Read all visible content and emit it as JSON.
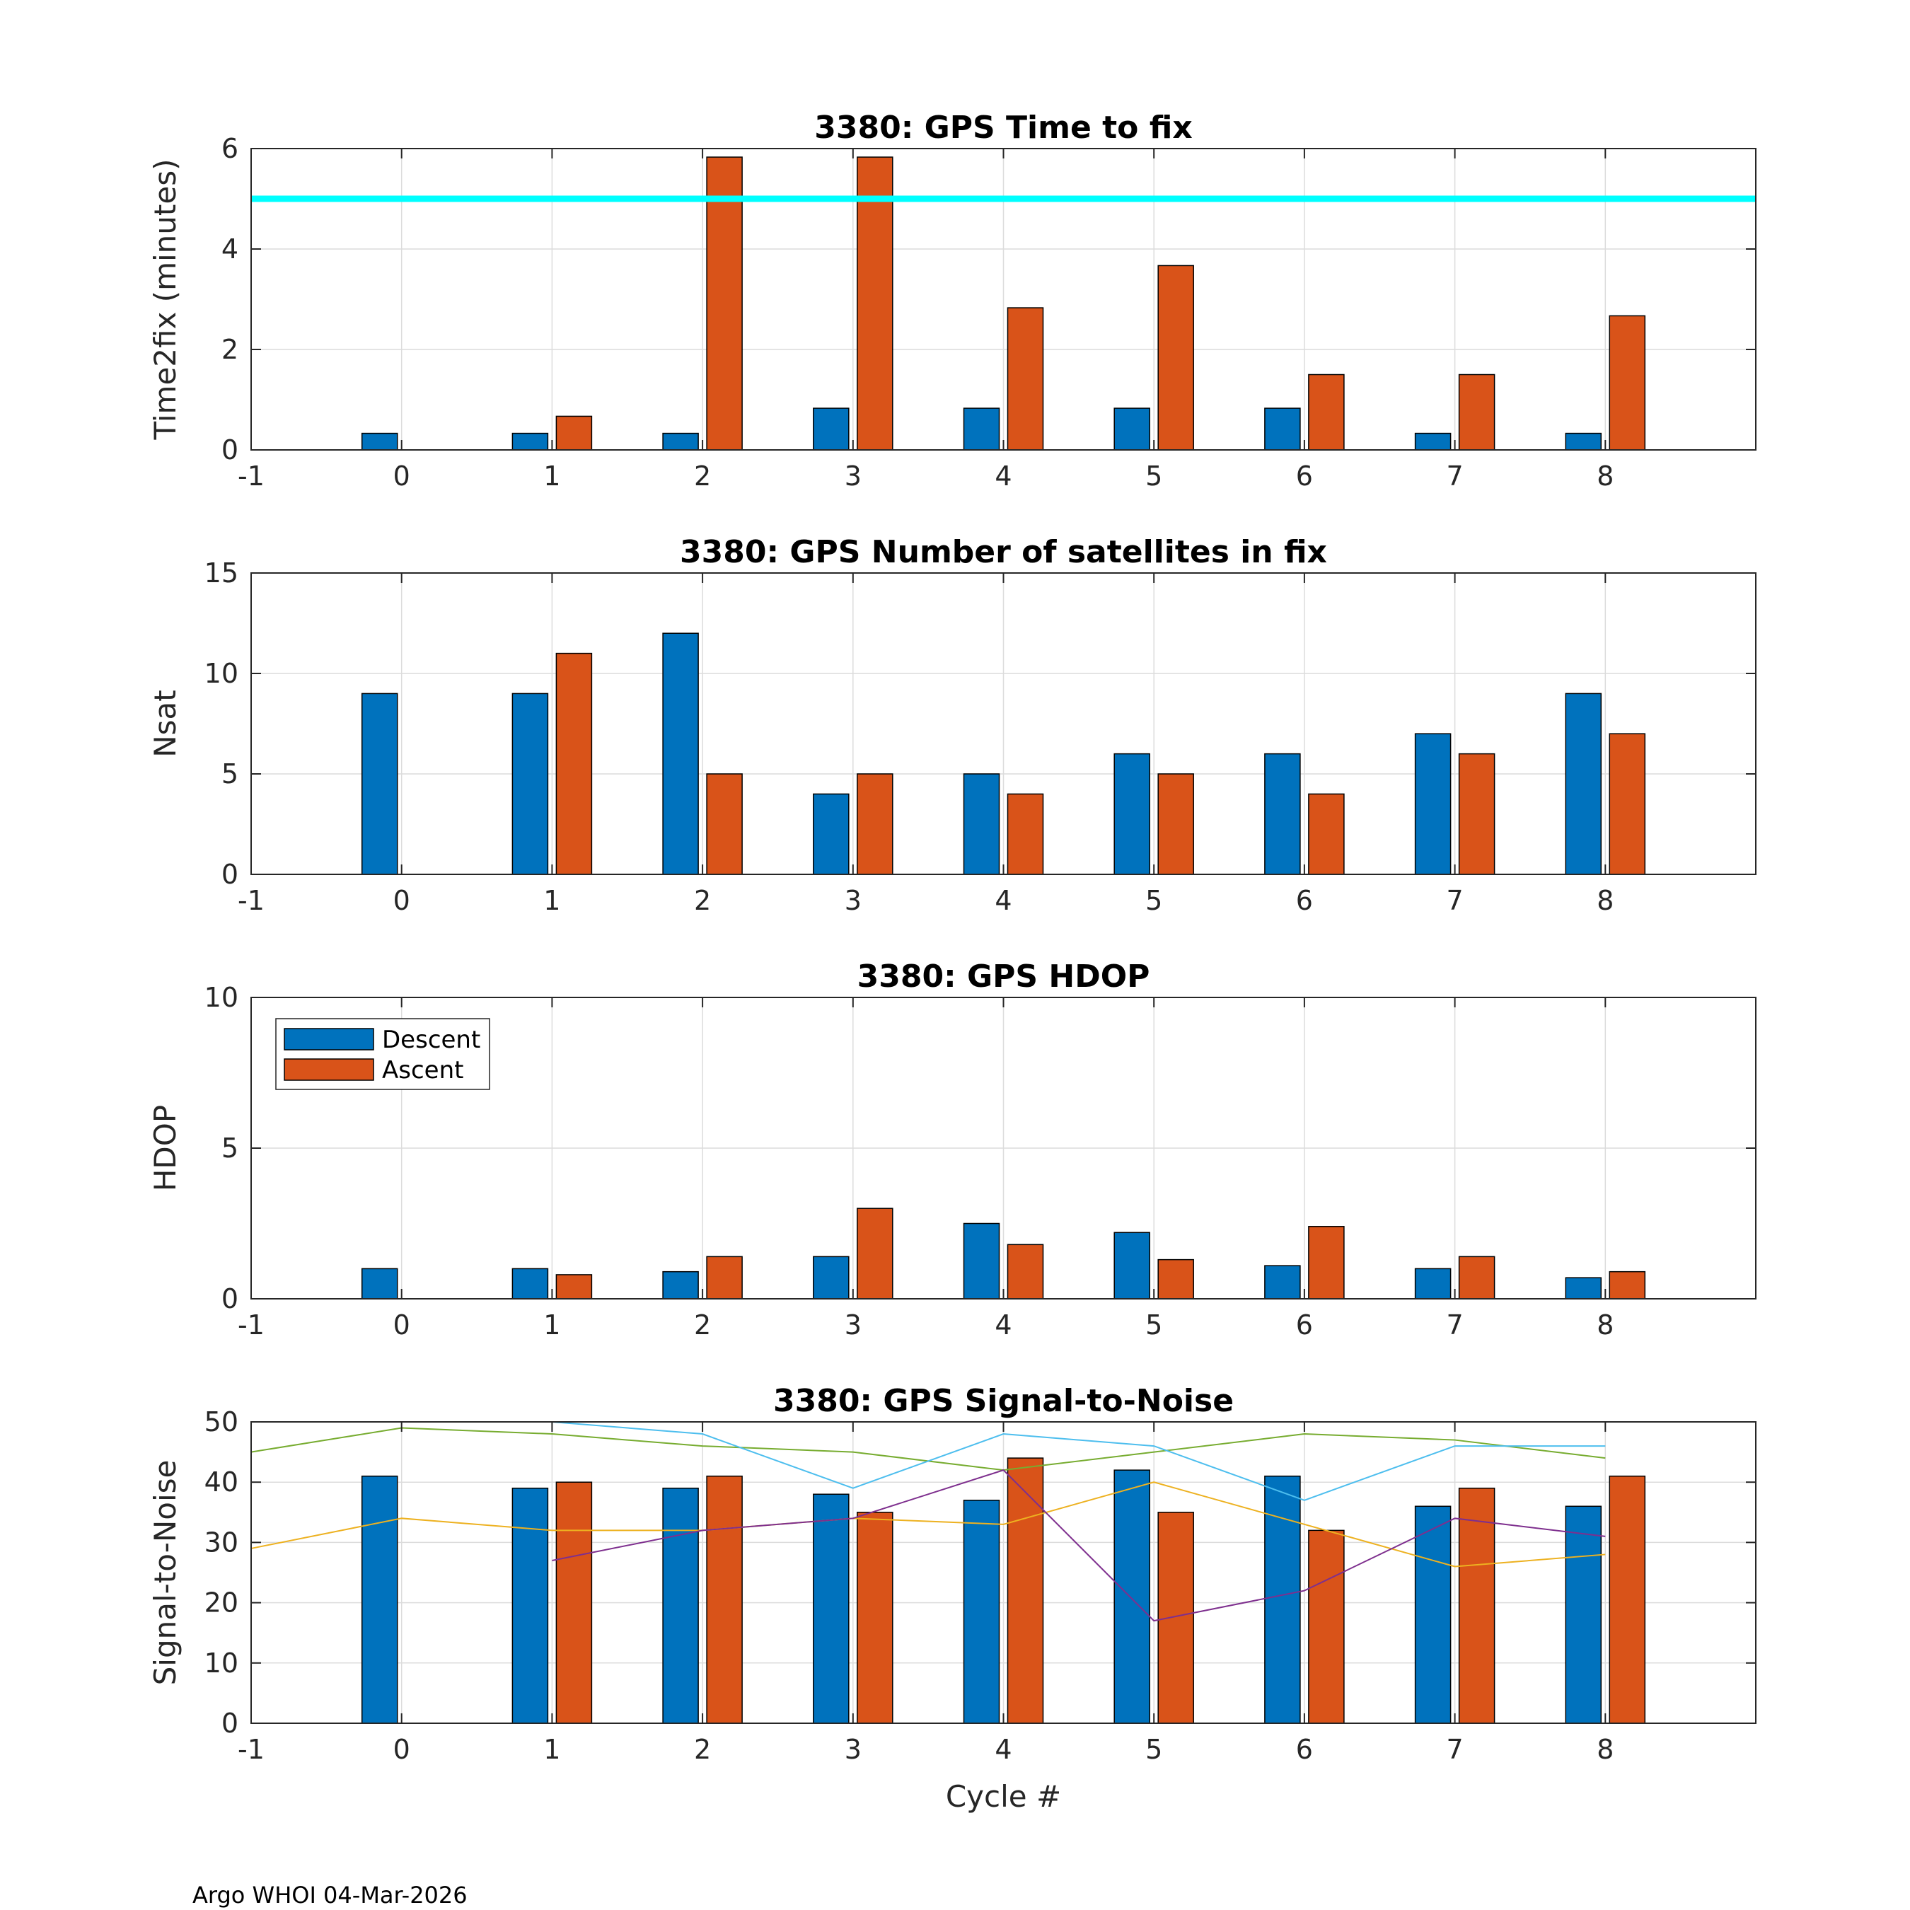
{
  "chart_data": [
    {
      "type": "bar",
      "id": "time2fix",
      "title": "3380: GPS Time to fix",
      "xlabel": "",
      "ylabel": "Time2fix (minutes)",
      "xlim": [
        -1,
        9
      ],
      "ylim": [
        0,
        6
      ],
      "xticks": [
        "-1",
        "0",
        "1",
        "2",
        "3",
        "4",
        "5",
        "6",
        "7",
        "8"
      ],
      "yticks": [
        "0",
        "2",
        "4",
        "6"
      ],
      "ytick_values": [
        0,
        2,
        4,
        6
      ],
      "categories": [
        0,
        1,
        2,
        3,
        4,
        5,
        6,
        7,
        8
      ],
      "series": [
        {
          "name": "Descent",
          "values": [
            0.33,
            0.33,
            0.33,
            0.83,
            0.83,
            0.83,
            0.83,
            0.33,
            0.33
          ]
        },
        {
          "name": "Ascent",
          "values": [
            0,
            0.67,
            5.83,
            5.83,
            2.83,
            3.67,
            1.5,
            1.5,
            2.67
          ]
        }
      ],
      "reference_line": {
        "value": 5,
        "color": "#00ffff"
      }
    },
    {
      "type": "bar",
      "id": "nsat",
      "title": "3380: GPS Number of satellites in fix",
      "xlabel": "",
      "ylabel": "Nsat",
      "xlim": [
        -1,
        9
      ],
      "ylim": [
        0,
        15
      ],
      "xticks": [
        "-1",
        "0",
        "1",
        "2",
        "3",
        "4",
        "5",
        "6",
        "7",
        "8"
      ],
      "yticks": [
        "0",
        "5",
        "10",
        "15"
      ],
      "ytick_values": [
        0,
        5,
        10,
        15
      ],
      "categories": [
        0,
        1,
        2,
        3,
        4,
        5,
        6,
        7,
        8
      ],
      "series": [
        {
          "name": "Descent",
          "values": [
            9,
            9,
            12,
            4,
            5,
            6,
            6,
            7,
            9
          ]
        },
        {
          "name": "Ascent",
          "values": [
            0,
            11,
            5,
            5,
            4,
            5,
            4,
            6,
            7
          ]
        }
      ]
    },
    {
      "type": "bar",
      "id": "hdop",
      "title": "3380: GPS HDOP",
      "xlabel": "",
      "ylabel": "HDOP",
      "xlim": [
        -1,
        9
      ],
      "ylim": [
        0,
        10
      ],
      "xticks": [
        "-1",
        "0",
        "1",
        "2",
        "3",
        "4",
        "5",
        "6",
        "7",
        "8"
      ],
      "yticks": [
        "0",
        "5",
        "10"
      ],
      "ytick_values": [
        0,
        5,
        10
      ],
      "categories": [
        0,
        1,
        2,
        3,
        4,
        5,
        6,
        7,
        8
      ],
      "series": [
        {
          "name": "Descent",
          "values": [
            1.0,
            1.0,
            0.9,
            1.4,
            2.5,
            2.2,
            1.1,
            1.0,
            0.7
          ]
        },
        {
          "name": "Ascent",
          "values": [
            0,
            0.8,
            1.4,
            3.0,
            1.8,
            1.3,
            2.4,
            1.4,
            0.9
          ]
        }
      ],
      "legend": {
        "position": "top-left",
        "entries": [
          "Descent",
          "Ascent"
        ]
      }
    },
    {
      "type": "bar",
      "id": "snr",
      "title": "3380: GPS Signal-to-Noise",
      "xlabel": "Cycle #",
      "ylabel": "Signal-to-Noise",
      "xlim": [
        -1,
        9
      ],
      "ylim": [
        0,
        50
      ],
      "xticks": [
        "-1",
        "0",
        "1",
        "2",
        "3",
        "4",
        "5",
        "6",
        "7",
        "8"
      ],
      "yticks": [
        "0",
        "10",
        "20",
        "30",
        "40",
        "50"
      ],
      "ytick_values": [
        0,
        10,
        20,
        30,
        40,
        50
      ],
      "categories": [
        0,
        1,
        2,
        3,
        4,
        5,
        6,
        7,
        8
      ],
      "series": [
        {
          "name": "Descent",
          "values": [
            41,
            39,
            39,
            38,
            37,
            42,
            41,
            36,
            36
          ]
        },
        {
          "name": "Ascent",
          "values": [
            0,
            40,
            41,
            35,
            44,
            35,
            32,
            39,
            41
          ]
        }
      ],
      "lines": [
        {
          "color": "#77ac30",
          "x": [
            -1,
            0,
            1,
            2,
            3,
            4,
            5,
            6,
            7,
            8
          ],
          "y": [
            45,
            49,
            48,
            46,
            45,
            42,
            45,
            48,
            47,
            44
          ]
        },
        {
          "color": "#4dbeee",
          "x": [
            1,
            2,
            3,
            4,
            5,
            6,
            7,
            8
          ],
          "y": [
            50,
            48,
            39,
            48,
            46,
            37,
            46,
            46
          ]
        },
        {
          "color": "#edb120",
          "x": [
            -1,
            0,
            1,
            2,
            3,
            4,
            5,
            6,
            7,
            8
          ],
          "y": [
            29,
            34,
            32,
            32,
            34,
            33,
            40,
            33,
            26,
            28
          ]
        },
        {
          "color": "#7e2f8e",
          "x": [
            1,
            2,
            3,
            4,
            5,
            6,
            7,
            8
          ],
          "y": [
            27,
            32,
            34,
            42,
            17,
            22,
            34,
            31
          ]
        }
      ]
    }
  ],
  "colors": {
    "descent": "#0072bd",
    "ascent": "#d95319"
  },
  "footer": "Argo WHOI 04-Mar-2026"
}
